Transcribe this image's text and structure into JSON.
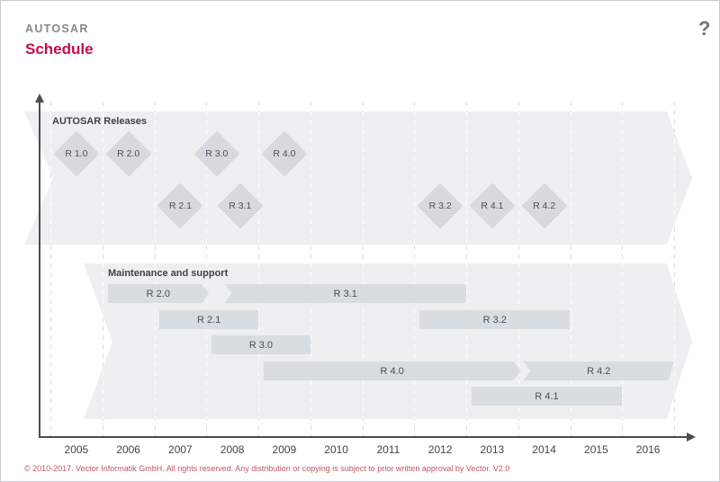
{
  "header": {
    "brand": "AUTOSAR",
    "title": "Schedule"
  },
  "help_icon": "?",
  "footer": {
    "copyright": "© 2010-2017. Vector Informatik GmbH. All rights reserved. Any distribution or copying is subject to prior written approval by Vector. V2.0"
  },
  "colors": {
    "accent_red": "#c60b46",
    "footer_red": "#c25663",
    "band_background": "#eeeff0",
    "shape_fill": "#d8dde1",
    "axis": "#4a4c4e",
    "text_dark": "#45494e",
    "brand_gray": "#85898f"
  },
  "chart_data": {
    "type": "timeline",
    "title": "Schedule",
    "x_axis": {
      "range": [
        2005,
        2017
      ],
      "tick_labels": [
        "2005",
        "2006",
        "2007",
        "2008",
        "2009",
        "2010",
        "2011",
        "2012",
        "2013",
        "2014",
        "2015",
        "2016"
      ],
      "gridlines": "dashed vertical at each year boundary"
    },
    "bands": [
      {
        "label": "AUTOSAR Releases",
        "milestones": [
          {
            "label": "R 1.0",
            "year": 2005.5,
            "row": 1
          },
          {
            "label": "R 2.0",
            "year": 2006.5,
            "row": 1
          },
          {
            "label": "R 2.1",
            "year": 2007.5,
            "row": 2
          },
          {
            "label": "R 3.0",
            "year": 2008.2,
            "row": 1
          },
          {
            "label": "R 3.1",
            "year": 2008.65,
            "row": 2
          },
          {
            "label": "R 4.0",
            "year": 2009.5,
            "row": 1
          },
          {
            "label": "R 3.2",
            "year": 2012.5,
            "row": 2
          },
          {
            "label": "R 4.1",
            "year": 2013.5,
            "row": 2
          },
          {
            "label": "R 4.2",
            "year": 2014.5,
            "row": 2
          }
        ]
      },
      {
        "label": "Maintenance and support",
        "bars": [
          {
            "label": "R 2.0",
            "start": 2006.1,
            "end": 2008.05,
            "row": 0,
            "left_edge": "flat",
            "right_edge": "arrow"
          },
          {
            "label": "R 3.1",
            "start": 2008.35,
            "end": 2013.0,
            "row": 0,
            "left_edge": "notch",
            "right_edge": "flat"
          },
          {
            "label": "R 2.1",
            "start": 2007.1,
            "end": 2009.0,
            "row": 1,
            "left_edge": "flat",
            "right_edge": "flat"
          },
          {
            "label": "R 3.2",
            "start": 2012.1,
            "end": 2015.0,
            "row": 1,
            "left_edge": "flat",
            "right_edge": "flat"
          },
          {
            "label": "R 3.0",
            "start": 2008.1,
            "end": 2010.0,
            "row": 2,
            "left_edge": "flat",
            "right_edge": "flat"
          },
          {
            "label": "R 4.0",
            "start": 2009.1,
            "end": 2014.05,
            "row": 3,
            "left_edge": "flat",
            "right_edge": "arrow"
          },
          {
            "label": "R 4.2",
            "start": 2014.1,
            "end": 2017.0,
            "row": 3,
            "left_edge": "notch",
            "right_edge": "slant"
          },
          {
            "label": "R 4.1",
            "start": 2013.1,
            "end": 2016.0,
            "row": 4,
            "left_edge": "flat",
            "right_edge": "flat"
          }
        ]
      }
    ]
  }
}
